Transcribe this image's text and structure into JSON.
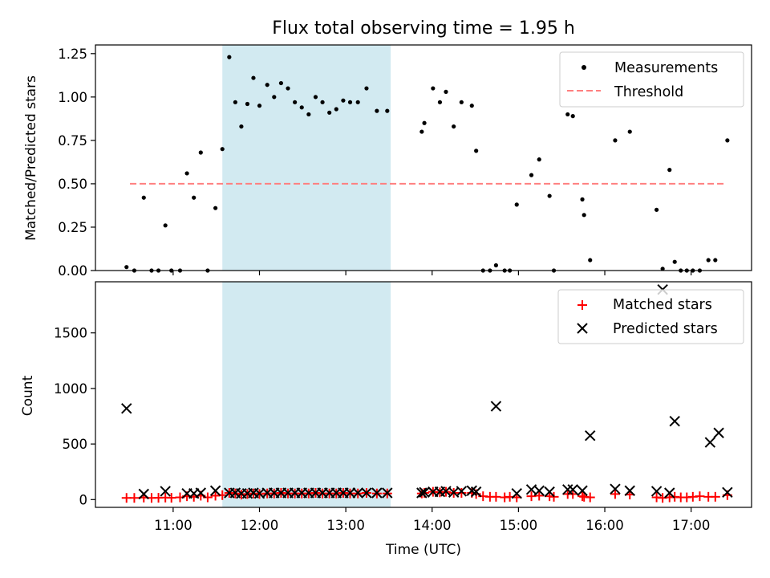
{
  "chart_data": {
    "title": "Flux total observing time = 1.95 h",
    "highlight_span": {
      "start": 11.57,
      "end": 13.52,
      "color": "#add8e6"
    },
    "x_axis": {
      "label": "Time (UTC)",
      "range": [
        10.1,
        17.7
      ],
      "ticks": [
        11,
        12,
        13,
        14,
        15,
        16,
        17
      ],
      "tick_labels": [
        "11:00",
        "12:00",
        "13:00",
        "14:00",
        "15:00",
        "16:00",
        "17:00"
      ]
    },
    "top": {
      "type": "scatter",
      "ylabel": "Matched/Predicted stars",
      "ylim": [
        0,
        1.3
      ],
      "yticks": [
        0,
        0.25,
        0.5,
        0.75,
        1.0,
        1.25
      ],
      "ytick_labels": [
        "0.00",
        "0.25",
        "0.50",
        "0.75",
        "1.00",
        "1.25"
      ],
      "legend": [
        "Measurements",
        "Threshold"
      ],
      "legend_position": "top-right",
      "threshold": {
        "name": "Threshold",
        "y": 0.5,
        "x_range": [
          10.5,
          17.4
        ],
        "color": "#ff7f7f"
      },
      "measurements": {
        "name": "Measurements",
        "color": "#000000",
        "x": [
          10.46,
          10.55,
          10.66,
          10.75,
          10.83,
          10.91,
          10.98,
          11.08,
          11.16,
          11.24,
          11.32,
          11.4,
          11.49,
          11.57,
          11.65,
          11.72,
          11.79,
          11.86,
          11.93,
          12.0,
          12.09,
          12.17,
          12.25,
          12.33,
          12.41,
          12.49,
          12.57,
          12.65,
          12.73,
          12.81,
          12.89,
          12.97,
          13.05,
          13.14,
          13.24,
          13.36,
          13.48,
          13.88,
          13.91,
          14.01,
          14.09,
          14.16,
          14.25,
          14.34,
          14.46,
          14.51,
          14.59,
          14.67,
          14.74,
          14.84,
          14.9,
          14.98,
          15.15,
          15.24,
          15.36,
          15.41,
          15.57,
          15.63,
          15.74,
          15.76,
          15.83,
          16.12,
          16.29,
          16.6,
          16.67,
          16.75,
          16.81,
          16.88,
          16.95,
          17.02,
          17.1,
          17.2,
          17.28,
          17.42
        ],
        "y": [
          0.02,
          0.0,
          0.42,
          0.0,
          0.0,
          0.26,
          0.0,
          0.0,
          0.56,
          0.42,
          0.68,
          0.0,
          0.36,
          0.7,
          1.23,
          0.97,
          0.83,
          0.96,
          1.11,
          0.95,
          1.07,
          1.0,
          1.08,
          1.05,
          0.97,
          0.94,
          0.9,
          1.0,
          0.97,
          0.91,
          0.93,
          0.98,
          0.97,
          0.97,
          1.05,
          0.92,
          0.92,
          0.8,
          0.85,
          1.05,
          0.97,
          1.03,
          0.83,
          0.97,
          0.95,
          0.69,
          0.0,
          0.0,
          0.03,
          0.0,
          0.0,
          0.38,
          0.55,
          0.64,
          0.43,
          0.0,
          0.9,
          0.89,
          0.41,
          0.32,
          0.06,
          0.75,
          0.8,
          0.35,
          0.01,
          0.58,
          0.05,
          0.0,
          0.0,
          0.0,
          0.0,
          0.06,
          0.06,
          0.75
        ]
      }
    },
    "bottom": {
      "type": "scatter",
      "ylabel": "Count",
      "ylim": [
        -70,
        1960
      ],
      "yticks": [
        0,
        500,
        1000,
        1500
      ],
      "ytick_labels": [
        "0",
        "500",
        "1000",
        "1500"
      ],
      "legend": [
        "Matched stars",
        "Predicted stars"
      ],
      "legend_position": "top-right",
      "matched": {
        "name": "Matched stars",
        "color": "#ff0000",
        "marker": "+",
        "x": [
          10.46,
          10.55,
          10.66,
          10.75,
          10.83,
          10.91,
          10.98,
          11.08,
          11.16,
          11.24,
          11.32,
          11.4,
          11.49,
          11.57,
          11.65,
          11.72,
          11.79,
          11.86,
          11.93,
          12.0,
          12.09,
          12.17,
          12.25,
          12.33,
          12.41,
          12.49,
          12.57,
          12.65,
          12.73,
          12.81,
          12.89,
          12.97,
          13.05,
          13.14,
          13.24,
          13.36,
          13.48,
          13.88,
          13.91,
          14.01,
          14.09,
          14.16,
          14.25,
          14.34,
          14.46,
          14.51,
          14.59,
          14.67,
          14.74,
          14.84,
          14.9,
          14.98,
          15.15,
          15.24,
          15.36,
          15.41,
          15.57,
          15.63,
          15.74,
          15.76,
          15.83,
          16.12,
          16.29,
          16.6,
          16.67,
          16.75,
          16.81,
          16.88,
          16.95,
          17.02,
          17.1,
          17.2,
          17.28,
          17.42
        ],
        "y": [
          15,
          15,
          18,
          15,
          16,
          18,
          16,
          20,
          30,
          25,
          35,
          20,
          35,
          40,
          60,
          55,
          45,
          50,
          55,
          50,
          55,
          55,
          60,
          55,
          55,
          55,
          55,
          60,
          55,
          55,
          55,
          60,
          55,
          55,
          60,
          55,
          55,
          55,
          60,
          70,
          65,
          70,
          60,
          60,
          60,
          50,
          30,
          25,
          25,
          20,
          25,
          20,
          30,
          35,
          30,
          25,
          50,
          50,
          30,
          25,
          20,
          50,
          45,
          20,
          15,
          20,
          25,
          20,
          20,
          25,
          30,
          25,
          25,
          40
        ]
      },
      "predicted": {
        "name": "Predicted stars",
        "color": "#000000",
        "marker": "x",
        "x": [
          10.46,
          10.66,
          10.91,
          11.16,
          11.24,
          11.32,
          11.49,
          11.65,
          11.72,
          11.79,
          11.86,
          11.93,
          12.0,
          12.09,
          12.17,
          12.25,
          12.33,
          12.41,
          12.49,
          12.57,
          12.65,
          12.73,
          12.81,
          12.89,
          12.97,
          13.05,
          13.14,
          13.24,
          13.36,
          13.48,
          13.88,
          13.91,
          14.01,
          14.09,
          14.16,
          14.25,
          14.34,
          14.46,
          14.51,
          14.74,
          14.98,
          15.15,
          15.24,
          15.36,
          15.57,
          15.63,
          15.74,
          15.83,
          16.12,
          16.29,
          16.6,
          16.67,
          16.75,
          16.81,
          17.22,
          17.32,
          17.42
        ],
        "y": [
          820,
          50,
          75,
          55,
          55,
          60,
          80,
          60,
          60,
          55,
          55,
          60,
          55,
          60,
          60,
          60,
          60,
          60,
          60,
          60,
          60,
          60,
          60,
          60,
          60,
          60,
          60,
          60,
          60,
          60,
          60,
          65,
          70,
          70,
          75,
          65,
          75,
          80,
          70,
          840,
          55,
          90,
          80,
          70,
          90,
          90,
          80,
          575,
          95,
          80,
          75,
          1890,
          60,
          705,
          515,
          600,
          65
        ]
      }
    }
  }
}
